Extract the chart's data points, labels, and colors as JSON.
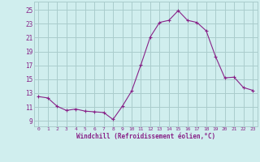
{
  "x": [
    0,
    1,
    2,
    3,
    4,
    5,
    6,
    7,
    8,
    9,
    10,
    11,
    12,
    13,
    14,
    15,
    16,
    17,
    18,
    19,
    20,
    21,
    22,
    23
  ],
  "y": [
    12.5,
    12.3,
    11.1,
    10.5,
    10.7,
    10.4,
    10.3,
    10.2,
    9.2,
    11.1,
    13.3,
    17.1,
    21.1,
    23.2,
    23.5,
    24.9,
    23.5,
    23.2,
    22.0,
    18.3,
    15.2,
    15.3,
    13.8,
    13.4
  ],
  "line_color": "#882288",
  "marker_color": "#882288",
  "bg_color": "#d0eeee",
  "grid_color": "#aacccc",
  "xlabel": "Windchill (Refroidissement éolien,°C)",
  "xlabel_color": "#882288",
  "xticks": [
    0,
    1,
    2,
    3,
    4,
    5,
    6,
    7,
    8,
    9,
    10,
    11,
    12,
    13,
    14,
    15,
    16,
    17,
    18,
    19,
    20,
    21,
    22,
    23
  ],
  "yticks": [
    9,
    11,
    13,
    15,
    17,
    19,
    21,
    23,
    25
  ],
  "ylim": [
    8.2,
    26.2
  ],
  "xlim": [
    -0.5,
    23.5
  ]
}
